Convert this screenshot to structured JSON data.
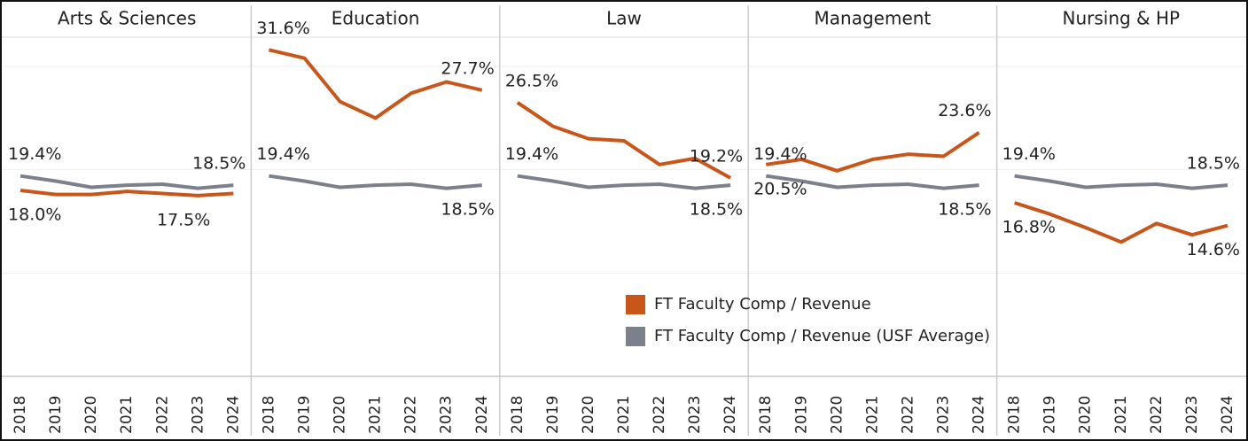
{
  "chart_data": [
    {
      "type": "line",
      "title": "Arts & Sciences",
      "categories": [
        "2018",
        "2019",
        "2020",
        "2021",
        "2022",
        "2023",
        "2024"
      ],
      "ylim": [
        0,
        33
      ],
      "yticks": [
        10,
        20,
        30
      ],
      "grid": true,
      "series": [
        {
          "name": "FT Faculty Comp / Revenue",
          "color": "#c8561a",
          "values": [
            18.0,
            17.6,
            17.6,
            17.9,
            17.7,
            17.5,
            17.7
          ],
          "value_labels": [
            "18.0%",
            null,
            null,
            null,
            null,
            "17.5%",
            null
          ]
        },
        {
          "name": "FT Faculty Comp / Revenue (USF Average)",
          "color": "#7b808c",
          "values": [
            19.4,
            18.9,
            18.3,
            18.5,
            18.6,
            18.2,
            18.5
          ],
          "value_labels": [
            "19.4%",
            null,
            null,
            null,
            null,
            null,
            "18.5%"
          ]
        }
      ]
    },
    {
      "type": "line",
      "title": "Education",
      "categories": [
        "2018",
        "2019",
        "2020",
        "2021",
        "2022",
        "2023",
        "2024"
      ],
      "ylim": [
        0,
        33
      ],
      "yticks": [
        10,
        20,
        30
      ],
      "grid": true,
      "series": [
        {
          "name": "FT Faculty Comp / Revenue",
          "color": "#c8561a",
          "values": [
            31.6,
            30.8,
            26.6,
            25.0,
            27.4,
            28.5,
            27.7
          ],
          "value_labels": [
            "31.6%",
            null,
            null,
            null,
            null,
            null,
            "27.7%"
          ]
        },
        {
          "name": "FT Faculty Comp / Revenue (USF Average)",
          "color": "#7b808c",
          "values": [
            19.4,
            18.9,
            18.3,
            18.5,
            18.6,
            18.2,
            18.5
          ],
          "value_labels": [
            "19.4%",
            null,
            null,
            null,
            null,
            null,
            "18.5%"
          ]
        }
      ]
    },
    {
      "type": "line",
      "title": "Law",
      "categories": [
        "2018",
        "2019",
        "2020",
        "2021",
        "2022",
        "2023",
        "2024"
      ],
      "ylim": [
        0,
        33
      ],
      "yticks": [
        10,
        20,
        30
      ],
      "grid": true,
      "series": [
        {
          "name": "FT Faculty Comp / Revenue",
          "color": "#c8561a",
          "values": [
            26.5,
            24.2,
            23.0,
            22.8,
            20.5,
            21.1,
            19.2
          ],
          "value_labels": [
            "26.5%",
            null,
            null,
            null,
            null,
            null,
            "19.2%"
          ]
        },
        {
          "name": "FT Faculty Comp / Revenue (USF Average)",
          "color": "#7b808c",
          "values": [
            19.4,
            18.9,
            18.3,
            18.5,
            18.6,
            18.2,
            18.5
          ],
          "value_labels": [
            "19.4%",
            null,
            null,
            null,
            null,
            null,
            "18.5%"
          ]
        }
      ]
    },
    {
      "type": "line",
      "title": "Management",
      "categories": [
        "2018",
        "2019",
        "2020",
        "2021",
        "2022",
        "2023",
        "2024"
      ],
      "ylim": [
        0,
        33
      ],
      "yticks": [
        10,
        20,
        30
      ],
      "grid": true,
      "series": [
        {
          "name": "FT Faculty Comp / Revenue",
          "color": "#c8561a",
          "values": [
            20.5,
            21.0,
            19.9,
            21.0,
            21.5,
            21.3,
            23.6
          ],
          "value_labels": [
            "20.5%",
            null,
            null,
            null,
            null,
            null,
            "23.6%"
          ]
        },
        {
          "name": "FT Faculty Comp / Revenue (USF Average)",
          "color": "#7b808c",
          "values": [
            19.4,
            18.9,
            18.3,
            18.5,
            18.6,
            18.2,
            18.5
          ],
          "value_labels": [
            "19.4%",
            null,
            null,
            null,
            null,
            null,
            "18.5%"
          ]
        }
      ]
    },
    {
      "type": "line",
      "title": "Nursing & HP",
      "categories": [
        "2018",
        "2019",
        "2020",
        "2021",
        "2022",
        "2023",
        "2024"
      ],
      "ylim": [
        0,
        33
      ],
      "yticks": [
        10,
        20,
        30
      ],
      "grid": true,
      "series": [
        {
          "name": "FT Faculty Comp / Revenue",
          "color": "#c8561a",
          "values": [
            16.8,
            15.7,
            14.4,
            13.0,
            14.8,
            13.7,
            14.6
          ],
          "value_labels": [
            "16.8%",
            null,
            null,
            null,
            null,
            null,
            "14.6%"
          ]
        },
        {
          "name": "FT Faculty Comp / Revenue (USF Average)",
          "color": "#7b808c",
          "values": [
            19.4,
            18.9,
            18.3,
            18.5,
            18.6,
            18.2,
            18.5
          ],
          "value_labels": [
            "19.4%",
            null,
            null,
            null,
            null,
            null,
            "18.5%"
          ]
        }
      ]
    }
  ]
}
